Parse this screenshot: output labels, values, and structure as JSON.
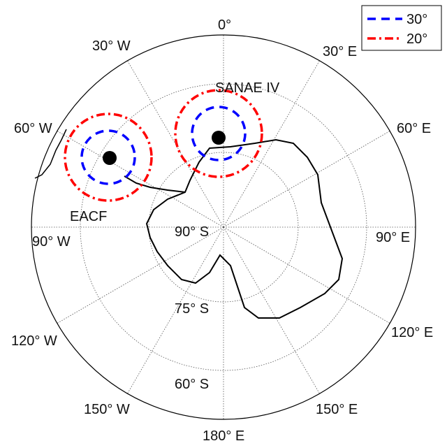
{
  "map": {
    "lon_labels": [
      "0°",
      "30° E",
      "60° E",
      "90° E",
      "120° E",
      "150° E",
      "180° E",
      "150° W",
      "120° W",
      "90° W",
      "60° W",
      "30° W"
    ],
    "lat_labels": [
      "90° S",
      "75° S",
      "60° S"
    ],
    "stations": [
      {
        "name": "SANAE IV"
      },
      {
        "name": "EACF"
      }
    ],
    "legend": [
      {
        "label": "30°"
      },
      {
        "label": "20°"
      }
    ]
  }
}
